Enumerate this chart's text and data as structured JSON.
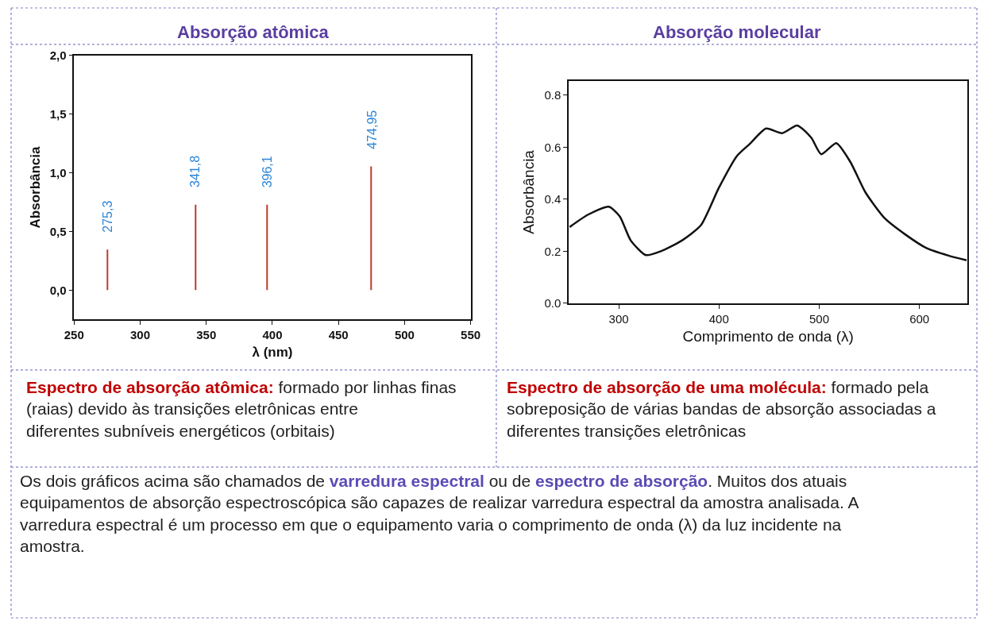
{
  "chart_data": [
    {
      "type": "bar",
      "title": "Absorção atômica",
      "xlabel": "λ (nm)",
      "ylabel": "Absorbância",
      "x": [
        275.3,
        341.8,
        396.1,
        474.95
      ],
      "values": [
        0.345,
        0.727,
        0.727,
        1.054
      ],
      "color": "#c0392b",
      "xlim": [
        250,
        550
      ],
      "xticks": [
        250,
        300,
        350,
        400,
        450,
        500,
        550
      ],
      "ylim": [
        -0.25,
        2.0
      ],
      "yticks": [
        {
          "value": 0,
          "label": "0,0"
        },
        {
          "value": 0.5,
          "label": "0,5"
        },
        {
          "value": 1.0,
          "label": "1,0"
        },
        {
          "value": 1.5,
          "label": "1,5"
        },
        {
          "value": 2.0,
          "label": "2,0"
        }
      ],
      "annotations": [
        {
          "text": "275,3",
          "x": 275.3,
          "y": 0.345
        },
        {
          "text": "341,8",
          "x": 341.8,
          "y": 0.727
        },
        {
          "text": "396,1",
          "x": 396.1,
          "y": 0.727
        },
        {
          "text": "474,95",
          "x": 474.95,
          "y": 1.054
        },
        "Espectro de absorção atômica:",
        " formado por linhas finas (raias) devido às transições eletrônicas entre diferentes subníveis energéticos (orbitais)"
      ]
    },
    {
      "type": "line",
      "title": "Absorção molecular",
      "xlabel": "Comprimento de onda (λ)",
      "ylabel": "Absorbância",
      "x": [
        251,
        269,
        290,
        301,
        312,
        327,
        342,
        363,
        382,
        400,
        418,
        431,
        447,
        463,
        478,
        492,
        502,
        517,
        531,
        546,
        565,
        586,
        607,
        629,
        647
      ],
      "values": [
        0.293,
        0.34,
        0.371,
        0.334,
        0.241,
        0.185,
        0.2,
        0.241,
        0.3,
        0.445,
        0.567,
        0.614,
        0.672,
        0.654,
        0.684,
        0.637,
        0.573,
        0.616,
        0.544,
        0.427,
        0.328,
        0.264,
        0.212,
        0.183,
        0.165
      ],
      "color": "#111111",
      "marker": "none",
      "line_style": "solid",
      "xlim": [
        250,
        648
      ],
      "xticks": [
        300,
        400,
        500,
        600
      ],
      "ylim": [
        0,
        0.855
      ],
      "yticks": [
        {
          "value": 0,
          "label": "0.0"
        },
        {
          "value": 0.2,
          "label": "0.2"
        },
        {
          "value": 0.4,
          "label": "0.4"
        },
        {
          "value": 0.6,
          "label": "0.6"
        },
        {
          "value": 0.8,
          "label": "0.8"
        }
      ],
      "annotations": [
        "Espectro de absorção de uma molécula:",
        " formado pela sobreposição de várias bandas de absorção associadas a diferentes transições eletrônicas"
      ]
    },
    {
      "type": "other",
      "annotations": [
        "Os dois gráficos acima são chamados de ",
        "varredura espectral",
        " ou de ",
        "espectro de absorção",
        ". Muitos dos atuais equipamentos de absorção espectroscópica são capazes de realizar varredura espectral da amostra analisada. A varredura espectral é um processo em que o equipamento varia o comprimento de onda (λ) da luz incidente na amostra."
      ]
    }
  ]
}
